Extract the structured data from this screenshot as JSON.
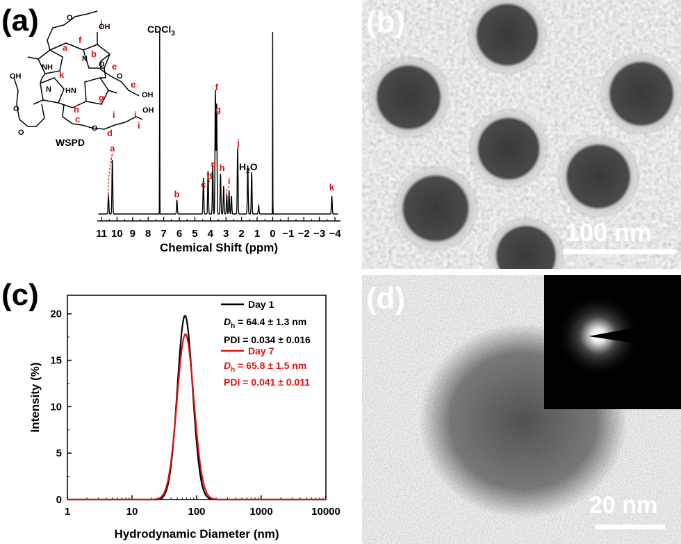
{
  "panels": {
    "a": "(a)",
    "b": "(b)",
    "c": "(c)",
    "d": "(d)"
  },
  "nmr": {
    "compound_label": "WSPD",
    "solvent_peak_label": "CDCl",
    "solvent_sub": "3",
    "water_label": "H",
    "water_sub": "2",
    "water_label_tail": "O",
    "xlabel": "Chemical Shift (ppm)",
    "x_ticks": [
      "11",
      "10",
      "9",
      "8",
      "7",
      "6",
      "5",
      "4",
      "3",
      "2",
      "1",
      "0",
      "−1",
      "−2",
      "−3",
      "−4"
    ],
    "peak_labels": [
      {
        "id": "a",
        "ppm": 10.3
      },
      {
        "id": "b",
        "ppm": 6.15
      },
      {
        "id": "c",
        "ppm": 4.45
      },
      {
        "id": "d",
        "ppm": 4.05
      },
      {
        "id": "e",
        "ppm": 3.8
      },
      {
        "id": "f",
        "ppm": 3.6
      },
      {
        "id": "g",
        "ppm": 3.5
      },
      {
        "id": "h",
        "ppm": 3.25
      },
      {
        "id": "i",
        "ppm": 2.8
      },
      {
        "id": "j",
        "ppm": 2.2
      },
      {
        "id": "k",
        "ppm": -3.8
      }
    ],
    "structure_labels": {
      "a": "a",
      "b": "b",
      "c": "c",
      "d": "d",
      "e1": "e",
      "e2": "e",
      "f": "f",
      "g": "g",
      "h": "h",
      "i1": "i",
      "i2": "i",
      "i3": "i",
      "j": "j",
      "k": "k",
      "nh": "NH",
      "hn": "HN",
      "oh1": "OH",
      "oh2": "OH",
      "oh3": "OH",
      "oh4": "OH",
      "o1": "O",
      "o2": "O",
      "o3": "O",
      "o4": "O",
      "o5": "O",
      "o6": "O",
      "n1": "N",
      "n2": "N"
    }
  },
  "tem_b": {
    "scale_label": "100 nm"
  },
  "tem_d": {
    "scale_label": "20 nm"
  },
  "chart_data": {
    "type": "line",
    "xlabel": "Hydrodynamic Diameter (nm)",
    "ylabel": "Intensity (%)",
    "x_scale": "log",
    "xlim": [
      1,
      10000
    ],
    "ylim": [
      0,
      22
    ],
    "x_ticks": [
      "1",
      "10",
      "100",
      "1000",
      "10000"
    ],
    "y_ticks": [
      "0",
      "5",
      "10",
      "15",
      "20"
    ],
    "series": [
      {
        "name": "Day 1",
        "color": "#000000",
        "peak_x": 66,
        "peak_y": 19.8,
        "log_sigma": 0.118,
        "x": [
          30,
          40,
          50,
          60,
          66,
          75,
          90,
          110,
          140,
          170
        ],
        "y": [
          0.0,
          2.3,
          11.5,
          18.9,
          19.8,
          18.6,
          12.3,
          4.3,
          0.3,
          0.0
        ]
      },
      {
        "name": "Day 7",
        "color": "#e01010",
        "peak_x": 67,
        "peak_y": 17.8,
        "log_sigma": 0.13,
        "x": [
          30,
          40,
          50,
          60,
          67,
          75,
          90,
          110,
          140,
          170
        ],
        "y": [
          0.0,
          3.0,
          10.7,
          16.8,
          17.8,
          16.9,
          11.7,
          4.8,
          0.6,
          0.0
        ]
      }
    ],
    "legend": {
      "position": "top-right",
      "entries": [
        {
          "name": "Day 1",
          "color": "#000000",
          "dh_prefix": "D",
          "dh_sub": "h",
          "dh_text": " = 64.4 ± 1.3 nm",
          "pdi": "PDI = 0.034 ± 0.016"
        },
        {
          "name": "Day 7",
          "color": "#e01010",
          "dh_prefix": "D",
          "dh_sub": "h",
          "dh_text": " = 65.8 ± 1.5 nm",
          "pdi": "PDI = 0.041 ± 0.011"
        }
      ]
    }
  }
}
